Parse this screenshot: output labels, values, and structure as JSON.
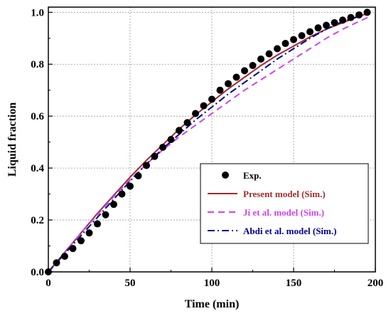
{
  "chart_data": {
    "type": "line",
    "xlabel": "Time (min)",
    "ylabel": "Liquid fraction",
    "xlim": [
      0,
      200
    ],
    "ylim": [
      0,
      1.02
    ],
    "xticks": [
      0,
      50,
      100,
      150,
      200
    ],
    "yticks": [
      0.0,
      0.2,
      0.4,
      0.6,
      0.8,
      1.0
    ],
    "xtick_labels": [
      "0",
      "50",
      "100",
      "150",
      "200"
    ],
    "ytick_labels": [
      "0.0",
      "0.2",
      "0.4",
      "0.6",
      "0.8",
      "1.0"
    ],
    "grid": true,
    "legend_placement": "lower-right",
    "series": [
      {
        "name": "Exp.",
        "style": "markers",
        "color": "#000000",
        "x": [
          0,
          5,
          10,
          15,
          20,
          25,
          30,
          35,
          40,
          45,
          50,
          55,
          60,
          65,
          70,
          75,
          80,
          85,
          90,
          95,
          100,
          105,
          110,
          115,
          120,
          125,
          130,
          135,
          140,
          145,
          150,
          155,
          160,
          165,
          170,
          175,
          180,
          185,
          190,
          195
        ],
        "y": [
          0.0,
          0.035,
          0.06,
          0.09,
          0.12,
          0.15,
          0.185,
          0.22,
          0.26,
          0.3,
          0.33,
          0.37,
          0.41,
          0.445,
          0.48,
          0.51,
          0.545,
          0.575,
          0.61,
          0.64,
          0.665,
          0.7,
          0.725,
          0.75,
          0.775,
          0.795,
          0.82,
          0.84,
          0.86,
          0.88,
          0.895,
          0.91,
          0.925,
          0.94,
          0.95,
          0.96,
          0.97,
          0.98,
          0.99,
          1.0
        ]
      },
      {
        "name": "Present model (Sim.)",
        "style": "solid",
        "color": "#a52a2a",
        "x": [
          0,
          10,
          20,
          30,
          40,
          50,
          60,
          70,
          80,
          90,
          100,
          110,
          120,
          130,
          140,
          150,
          160,
          170,
          180,
          190,
          195
        ],
        "y": [
          0.0,
          0.075,
          0.15,
          0.225,
          0.295,
          0.365,
          0.43,
          0.49,
          0.55,
          0.605,
          0.655,
          0.705,
          0.75,
          0.795,
          0.835,
          0.87,
          0.905,
          0.935,
          0.96,
          0.985,
          0.995
        ]
      },
      {
        "name": "Ji et al. model (Sim.)",
        "style": "dashed",
        "color": "#cc44ee",
        "x": [
          0,
          10,
          20,
          30,
          40,
          50,
          60,
          70,
          80,
          90,
          100,
          110,
          120,
          130,
          140,
          150,
          160,
          170,
          180,
          190,
          197
        ],
        "y": [
          0.0,
          0.075,
          0.15,
          0.22,
          0.29,
          0.355,
          0.415,
          0.47,
          0.52,
          0.565,
          0.61,
          0.655,
          0.7,
          0.74,
          0.78,
          0.82,
          0.86,
          0.9,
          0.935,
          0.965,
          0.985
        ]
      },
      {
        "name": "Abdi et al. model (Sim.)",
        "style": "dashdot",
        "color": "#00008b",
        "x": [
          0,
          10,
          20,
          30,
          40,
          50,
          60,
          70,
          80,
          90,
          100,
          110,
          120,
          130,
          140,
          150,
          160,
          170,
          180,
          190,
          197
        ],
        "y": [
          0.0,
          0.07,
          0.14,
          0.21,
          0.28,
          0.35,
          0.415,
          0.475,
          0.53,
          0.585,
          0.635,
          0.685,
          0.73,
          0.775,
          0.82,
          0.86,
          0.9,
          0.935,
          0.965,
          0.985,
          0.995
        ]
      }
    ]
  }
}
